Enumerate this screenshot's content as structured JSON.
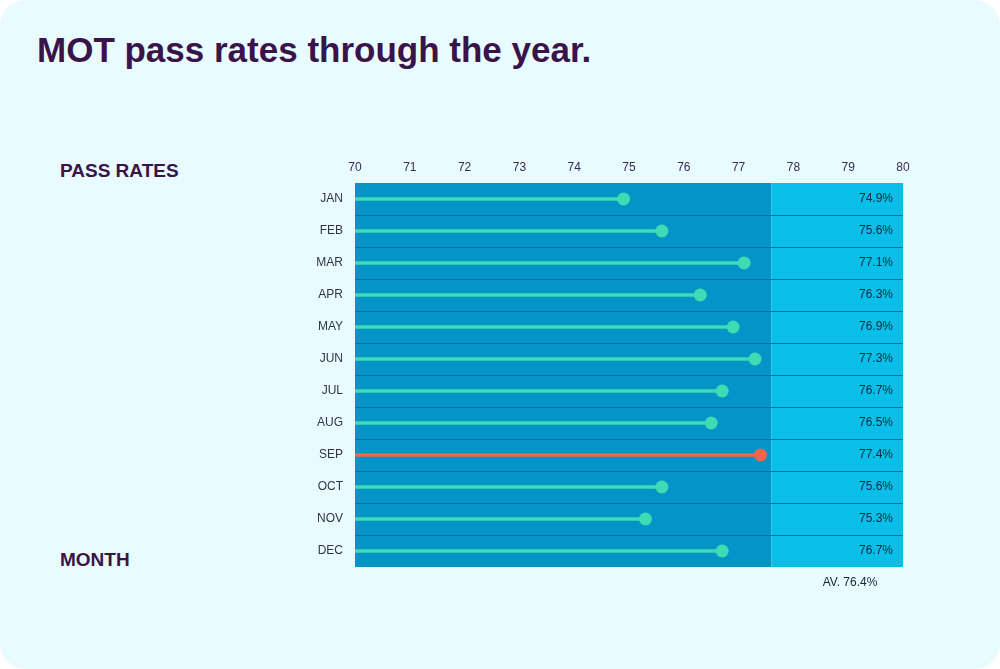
{
  "chart_data": {
    "type": "bar",
    "title": "MOT pass rates through the year.",
    "x_label": "PASS RATES",
    "y_label": "MONTH",
    "orientation": "horizontal",
    "categories": [
      "JAN",
      "FEB",
      "MAR",
      "APR",
      "MAY",
      "JUN",
      "JUL",
      "AUG",
      "SEP",
      "OCT",
      "NOV",
      "DEC"
    ],
    "values": [
      74.9,
      75.6,
      77.1,
      76.3,
      76.9,
      77.3,
      76.7,
      76.5,
      77.4,
      75.6,
      75.3,
      76.7
    ],
    "value_labels": [
      "74.9%",
      "75.6%",
      "77.1%",
      "76.3%",
      "76.9%",
      "77.3%",
      "76.7%",
      "76.5%",
      "77.4%",
      "75.6%",
      "75.3%",
      "76.7%"
    ],
    "colors": [
      "#3ddcb2",
      "#3ddcb2",
      "#3ddcb2",
      "#3ddcb2",
      "#3ddcb2",
      "#3ddcb2",
      "#3ddcb2",
      "#3ddcb2",
      "#f2664a",
      "#3ddcb2",
      "#3ddcb2",
      "#3ddcb2"
    ],
    "xlim": [
      70,
      80
    ],
    "xticks": [
      70,
      71,
      72,
      73,
      74,
      75,
      76,
      77,
      78,
      79,
      80
    ],
    "marker": "circle",
    "grid": true,
    "data_labels": true,
    "annotations": [
      "AV. 76.4%"
    ]
  }
}
